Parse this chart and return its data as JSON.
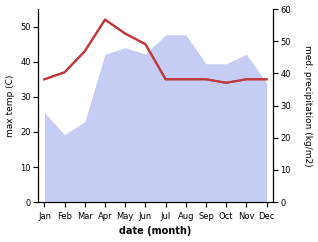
{
  "months": [
    "Jan",
    "Feb",
    "Mar",
    "Apr",
    "May",
    "Jun",
    "Jul",
    "Aug",
    "Sep",
    "Oct",
    "Nov",
    "Dec"
  ],
  "temperature": [
    35,
    37,
    43,
    52,
    48,
    45,
    35,
    35,
    35,
    34,
    35,
    35
  ],
  "precipitation": [
    28,
    21,
    25,
    46,
    48,
    46,
    52,
    52,
    43,
    43,
    46,
    37
  ],
  "temp_color": "#c0393b",
  "precip_fill_color": "#c5cdf5",
  "temp_ylim": [
    0,
    55
  ],
  "precip_ylim": [
    0,
    60
  ],
  "temp_yticks": [
    0,
    10,
    20,
    30,
    40,
    50
  ],
  "precip_yticks": [
    0,
    10,
    20,
    30,
    40,
    50,
    60
  ],
  "ylabel_left": "max temp (C)",
  "ylabel_right": "med. precipitation (kg/m2)",
  "xlabel": "date (month)",
  "fig_bg": "#ffffff",
  "ax_bg": "#ffffff",
  "tick_fontsize": 6,
  "label_fontsize": 6.5,
  "xlabel_fontsize": 7
}
